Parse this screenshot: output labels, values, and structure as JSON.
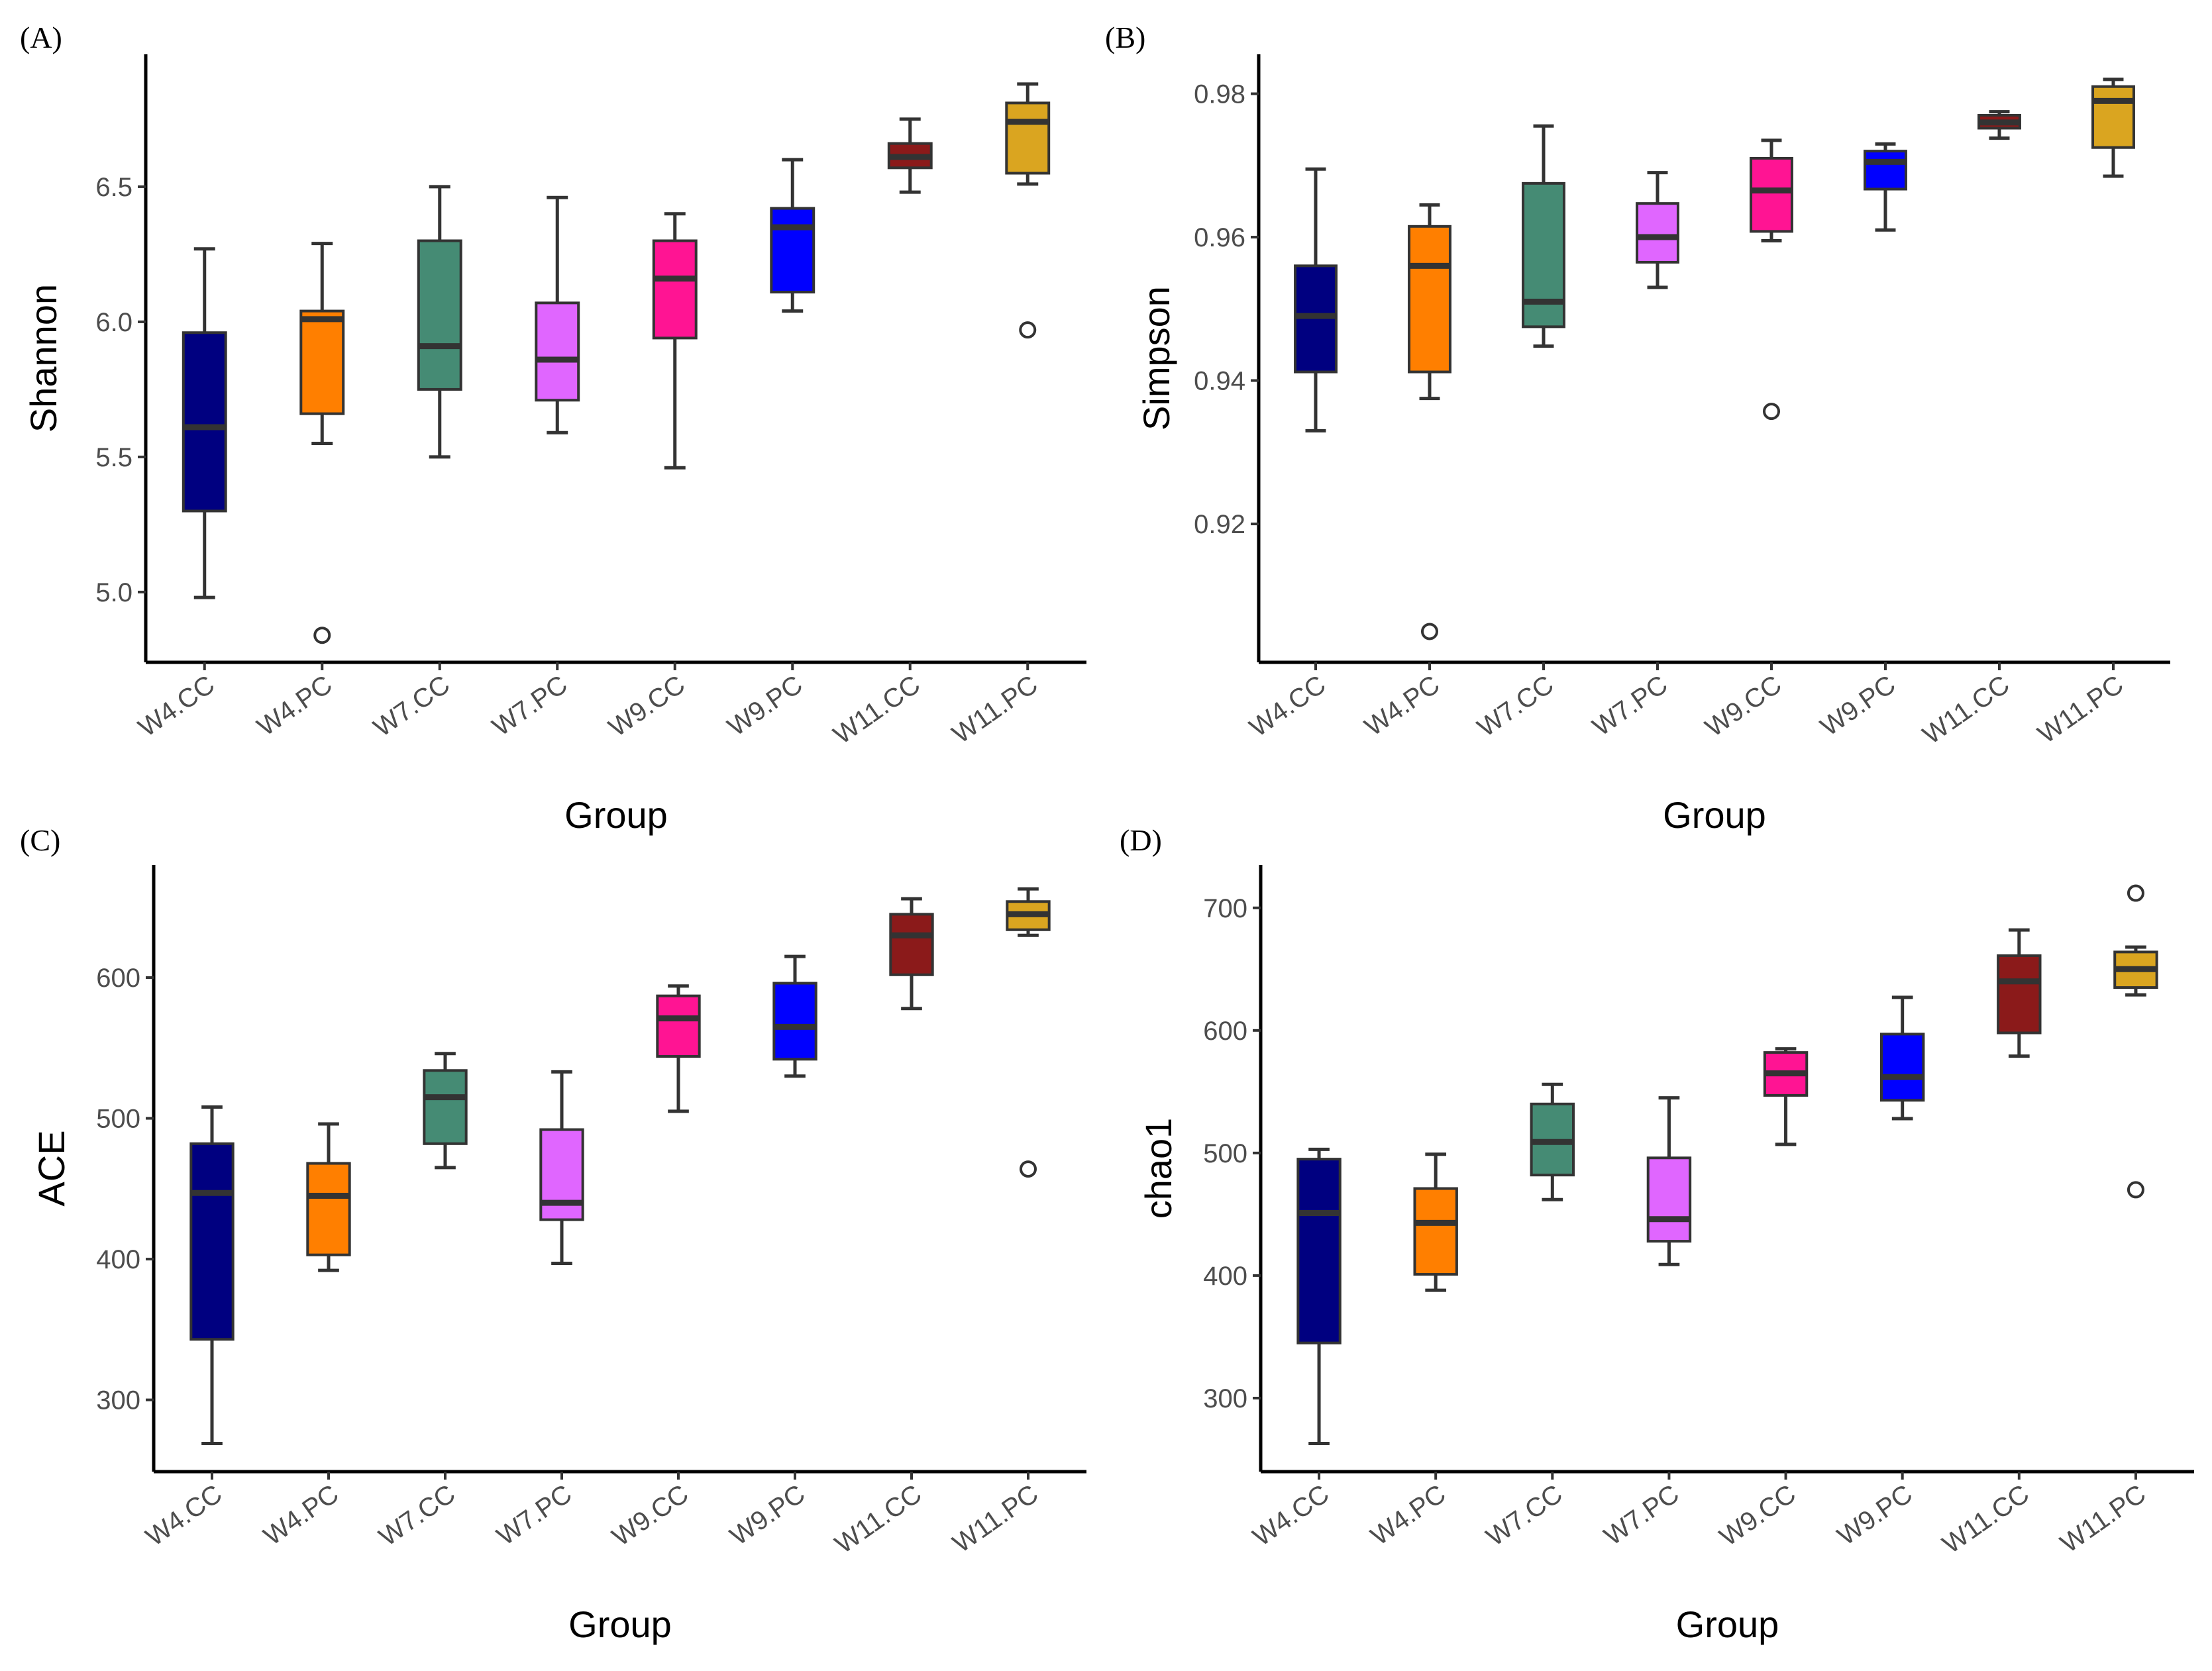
{
  "chart_data": [
    {
      "type": "boxplot",
      "panel_label": "(A)",
      "xlabel": "Group",
      "ylabel": "Shannon",
      "ylim": [
        4.74,
        6.99
      ],
      "yticks": [
        5.0,
        5.5,
        6.0,
        6.5
      ],
      "ytick_labels": [
        "5.0",
        "5.5",
        "6.0",
        "6.5"
      ],
      "categories": [
        "W4.CC",
        "W4.PC",
        "W7.CC",
        "W7.PC",
        "W9.CC",
        "W9.PC",
        "W11.CC",
        "W11.PC"
      ],
      "boxes": [
        {
          "min": 4.98,
          "q1": 5.3,
          "median": 5.61,
          "q3": 5.96,
          "max": 6.27,
          "outliers": []
        },
        {
          "min": 5.55,
          "q1": 5.66,
          "median": 6.01,
          "q3": 6.04,
          "max": 6.29,
          "outliers": [
            4.84
          ]
        },
        {
          "min": 5.5,
          "q1": 5.75,
          "median": 5.91,
          "q3": 6.3,
          "max": 6.5,
          "outliers": []
        },
        {
          "min": 5.59,
          "q1": 5.71,
          "median": 5.86,
          "q3": 6.07,
          "max": 6.46,
          "outliers": []
        },
        {
          "min": 5.46,
          "q1": 5.94,
          "median": 6.16,
          "q3": 6.3,
          "max": 6.4,
          "outliers": []
        },
        {
          "min": 6.04,
          "q1": 6.11,
          "median": 6.35,
          "q3": 6.42,
          "max": 6.6,
          "outliers": []
        },
        {
          "min": 6.48,
          "q1": 6.57,
          "median": 6.61,
          "q3": 6.66,
          "max": 6.75,
          "outliers": []
        },
        {
          "min": 6.51,
          "q1": 6.55,
          "median": 6.74,
          "q3": 6.81,
          "max": 6.88,
          "outliers": [
            5.97
          ]
        }
      ]
    },
    {
      "type": "boxplot",
      "panel_label": "(B)",
      "xlabel": "Group",
      "ylabel": "Simpson",
      "ylim": [
        0.9007,
        0.9855
      ],
      "yticks": [
        0.92,
        0.94,
        0.96,
        0.98
      ],
      "ytick_labels": [
        "0.92",
        "0.94",
        "0.96",
        "0.98"
      ],
      "categories": [
        "W4.CC",
        "W4.PC",
        "W7.CC",
        "W7.PC",
        "W9.CC",
        "W9.PC",
        "W11.CC",
        "W11.PC"
      ],
      "boxes": [
        {
          "min": 0.933,
          "q1": 0.9412,
          "median": 0.949,
          "q3": 0.956,
          "max": 0.9695,
          "outliers": []
        },
        {
          "min": 0.9375,
          "q1": 0.9412,
          "median": 0.956,
          "q3": 0.9615,
          "max": 0.9645,
          "outliers": [
            0.905
          ]
        },
        {
          "min": 0.9448,
          "q1": 0.9475,
          "median": 0.951,
          "q3": 0.9675,
          "max": 0.9755,
          "outliers": []
        },
        {
          "min": 0.953,
          "q1": 0.9565,
          "median": 0.96,
          "q3": 0.9647,
          "max": 0.969,
          "outliers": []
        },
        {
          "min": 0.9595,
          "q1": 0.9608,
          "median": 0.9665,
          "q3": 0.971,
          "max": 0.9735,
          "outliers": [
            0.9357
          ]
        },
        {
          "min": 0.961,
          "q1": 0.9667,
          "median": 0.9705,
          "q3": 0.972,
          "max": 0.973,
          "outliers": []
        },
        {
          "min": 0.9738,
          "q1": 0.9752,
          "median": 0.976,
          "q3": 0.977,
          "max": 0.9775,
          "outliers": []
        },
        {
          "min": 0.9685,
          "q1": 0.9725,
          "median": 0.979,
          "q3": 0.981,
          "max": 0.982,
          "outliers": []
        }
      ]
    },
    {
      "type": "boxplot",
      "panel_label": "(C)",
      "xlabel": "Group",
      "ylabel": "ACE",
      "ylim": [
        249,
        680
      ],
      "yticks": [
        300,
        400,
        500,
        600
      ],
      "ytick_labels": [
        "300",
        "400",
        "500",
        "600"
      ],
      "categories": [
        "W4.CC",
        "W4.PC",
        "W7.CC",
        "W7.PC",
        "W9.CC",
        "W9.PC",
        "W11.CC",
        "W11.PC"
      ],
      "boxes": [
        {
          "min": 269,
          "q1": 343,
          "median": 447,
          "q3": 482,
          "max": 508,
          "outliers": []
        },
        {
          "min": 392,
          "q1": 403,
          "median": 445,
          "q3": 468,
          "max": 496,
          "outliers": []
        },
        {
          "min": 465,
          "q1": 482,
          "median": 515,
          "q3": 534,
          "max": 546,
          "outliers": []
        },
        {
          "min": 397,
          "q1": 428,
          "median": 440,
          "q3": 492,
          "max": 533,
          "outliers": []
        },
        {
          "min": 505,
          "q1": 544,
          "median": 571,
          "q3": 587,
          "max": 594,
          "outliers": []
        },
        {
          "min": 530,
          "q1": 542,
          "median": 565,
          "q3": 596,
          "max": 615,
          "outliers": []
        },
        {
          "min": 578,
          "q1": 602,
          "median": 630,
          "q3": 645,
          "max": 656,
          "outliers": []
        },
        {
          "min": 630,
          "q1": 634,
          "median": 645,
          "q3": 654,
          "max": 663,
          "outliers": [
            464
          ]
        }
      ]
    },
    {
      "type": "boxplot",
      "panel_label": "(D)",
      "xlabel": "Group",
      "ylabel": "chao1",
      "ylim": [
        240,
        735
      ],
      "yticks": [
        300,
        400,
        500,
        600,
        700
      ],
      "ytick_labels": [
        "300",
        "400",
        "500",
        "600",
        "700"
      ],
      "categories": [
        "W4.CC",
        "W4.PC",
        "W7.CC",
        "W7.PC",
        "W9.CC",
        "W9.PC",
        "W11.CC",
        "W11.PC"
      ],
      "boxes": [
        {
          "min": 263,
          "q1": 345,
          "median": 451,
          "q3": 495,
          "max": 503,
          "outliers": []
        },
        {
          "min": 388,
          "q1": 401,
          "median": 443,
          "q3": 471,
          "max": 499,
          "outliers": []
        },
        {
          "min": 462,
          "q1": 482,
          "median": 509,
          "q3": 540,
          "max": 556,
          "outliers": []
        },
        {
          "min": 409,
          "q1": 428,
          "median": 446,
          "q3": 496,
          "max": 545,
          "outliers": []
        },
        {
          "min": 507,
          "q1": 547,
          "median": 565,
          "q3": 582,
          "max": 585,
          "outliers": []
        },
        {
          "min": 528,
          "q1": 543,
          "median": 562,
          "q3": 597,
          "max": 627,
          "outliers": []
        },
        {
          "min": 579,
          "q1": 598,
          "median": 640,
          "q3": 661,
          "max": 682,
          "outliers": []
        },
        {
          "min": 629,
          "q1": 635,
          "median": 650,
          "q3": 664,
          "max": 668,
          "outliers": [
            712,
            470
          ]
        }
      ]
    }
  ],
  "group_colors": [
    "#000080",
    "#FF7F00",
    "#458B74",
    "#E066FF",
    "#FF1493",
    "#0000FF",
    "#8B1A1A",
    "#DAA520"
  ]
}
